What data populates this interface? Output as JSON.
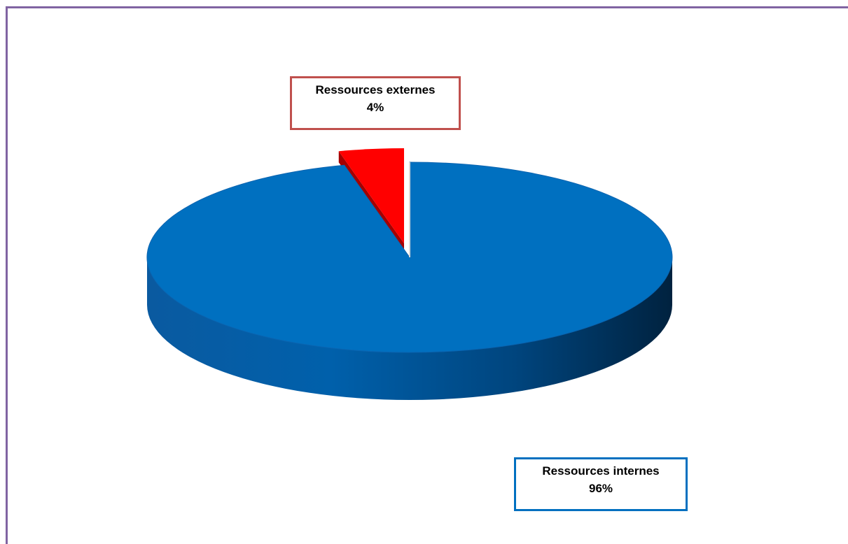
{
  "colors": {
    "frame": "#8064a2",
    "internal_slice": "#0070c0",
    "internal_side_dark": "#002a4e",
    "external_slice": "#ff0000",
    "external_side": "#a50000",
    "external_label_border": "#c0504d",
    "internal_label_border": "#0070c0"
  },
  "chart_data": {
    "type": "pie",
    "style": "3d-exploded",
    "title": "",
    "slices": [
      {
        "name": "Ressources internes",
        "value": 96,
        "label": "96%",
        "color": "#0070c0"
      },
      {
        "name": "Ressources externes",
        "value": 4,
        "label": "4%",
        "color": "#ff0000",
        "exploded": true
      }
    ],
    "legend": "none",
    "data_labels": "callout boxes"
  }
}
